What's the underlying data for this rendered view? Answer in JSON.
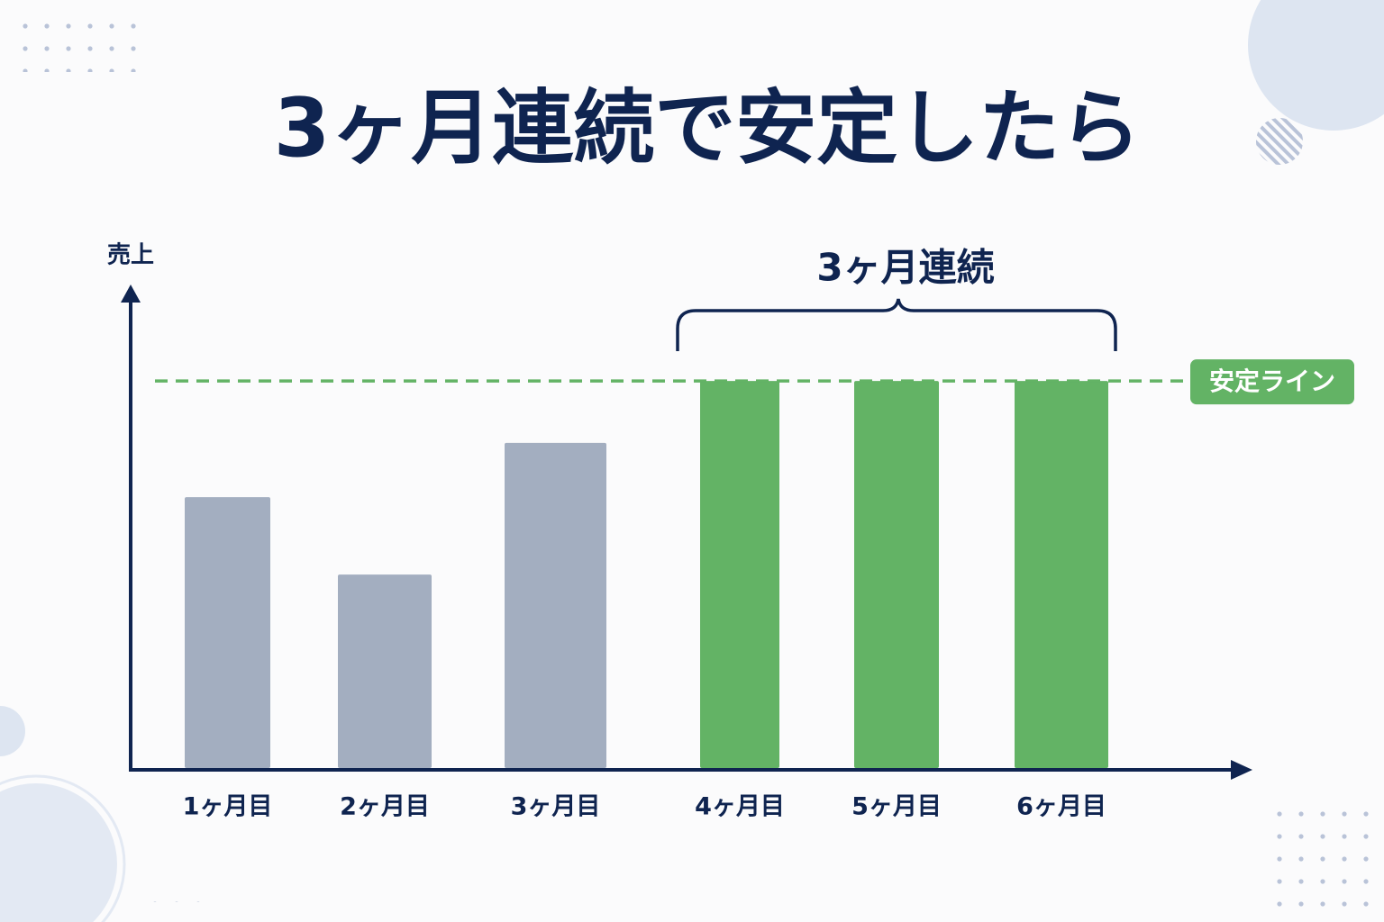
{
  "chart_data": {
    "type": "bar",
    "title": "3ヶ月連続で安定したら",
    "y_label": "売上",
    "categories": [
      "1ヶ月目",
      "2ヶ月目",
      "3ヶ月目",
      "4ヶ月目",
      "5ヶ月目",
      "6ヶ月目"
    ],
    "values": [
      70,
      50,
      84,
      100,
      100,
      100
    ],
    "colors": [
      "#a3aec0",
      "#a3aec0",
      "#a3aec0",
      "#63b365",
      "#63b365",
      "#63b365"
    ],
    "ylim": [
      0,
      124
    ],
    "stable_line": {
      "label": "安定ライン",
      "value": 100,
      "color": "#63b365"
    },
    "bracket": {
      "label": "3ヶ月連続"
    }
  }
}
